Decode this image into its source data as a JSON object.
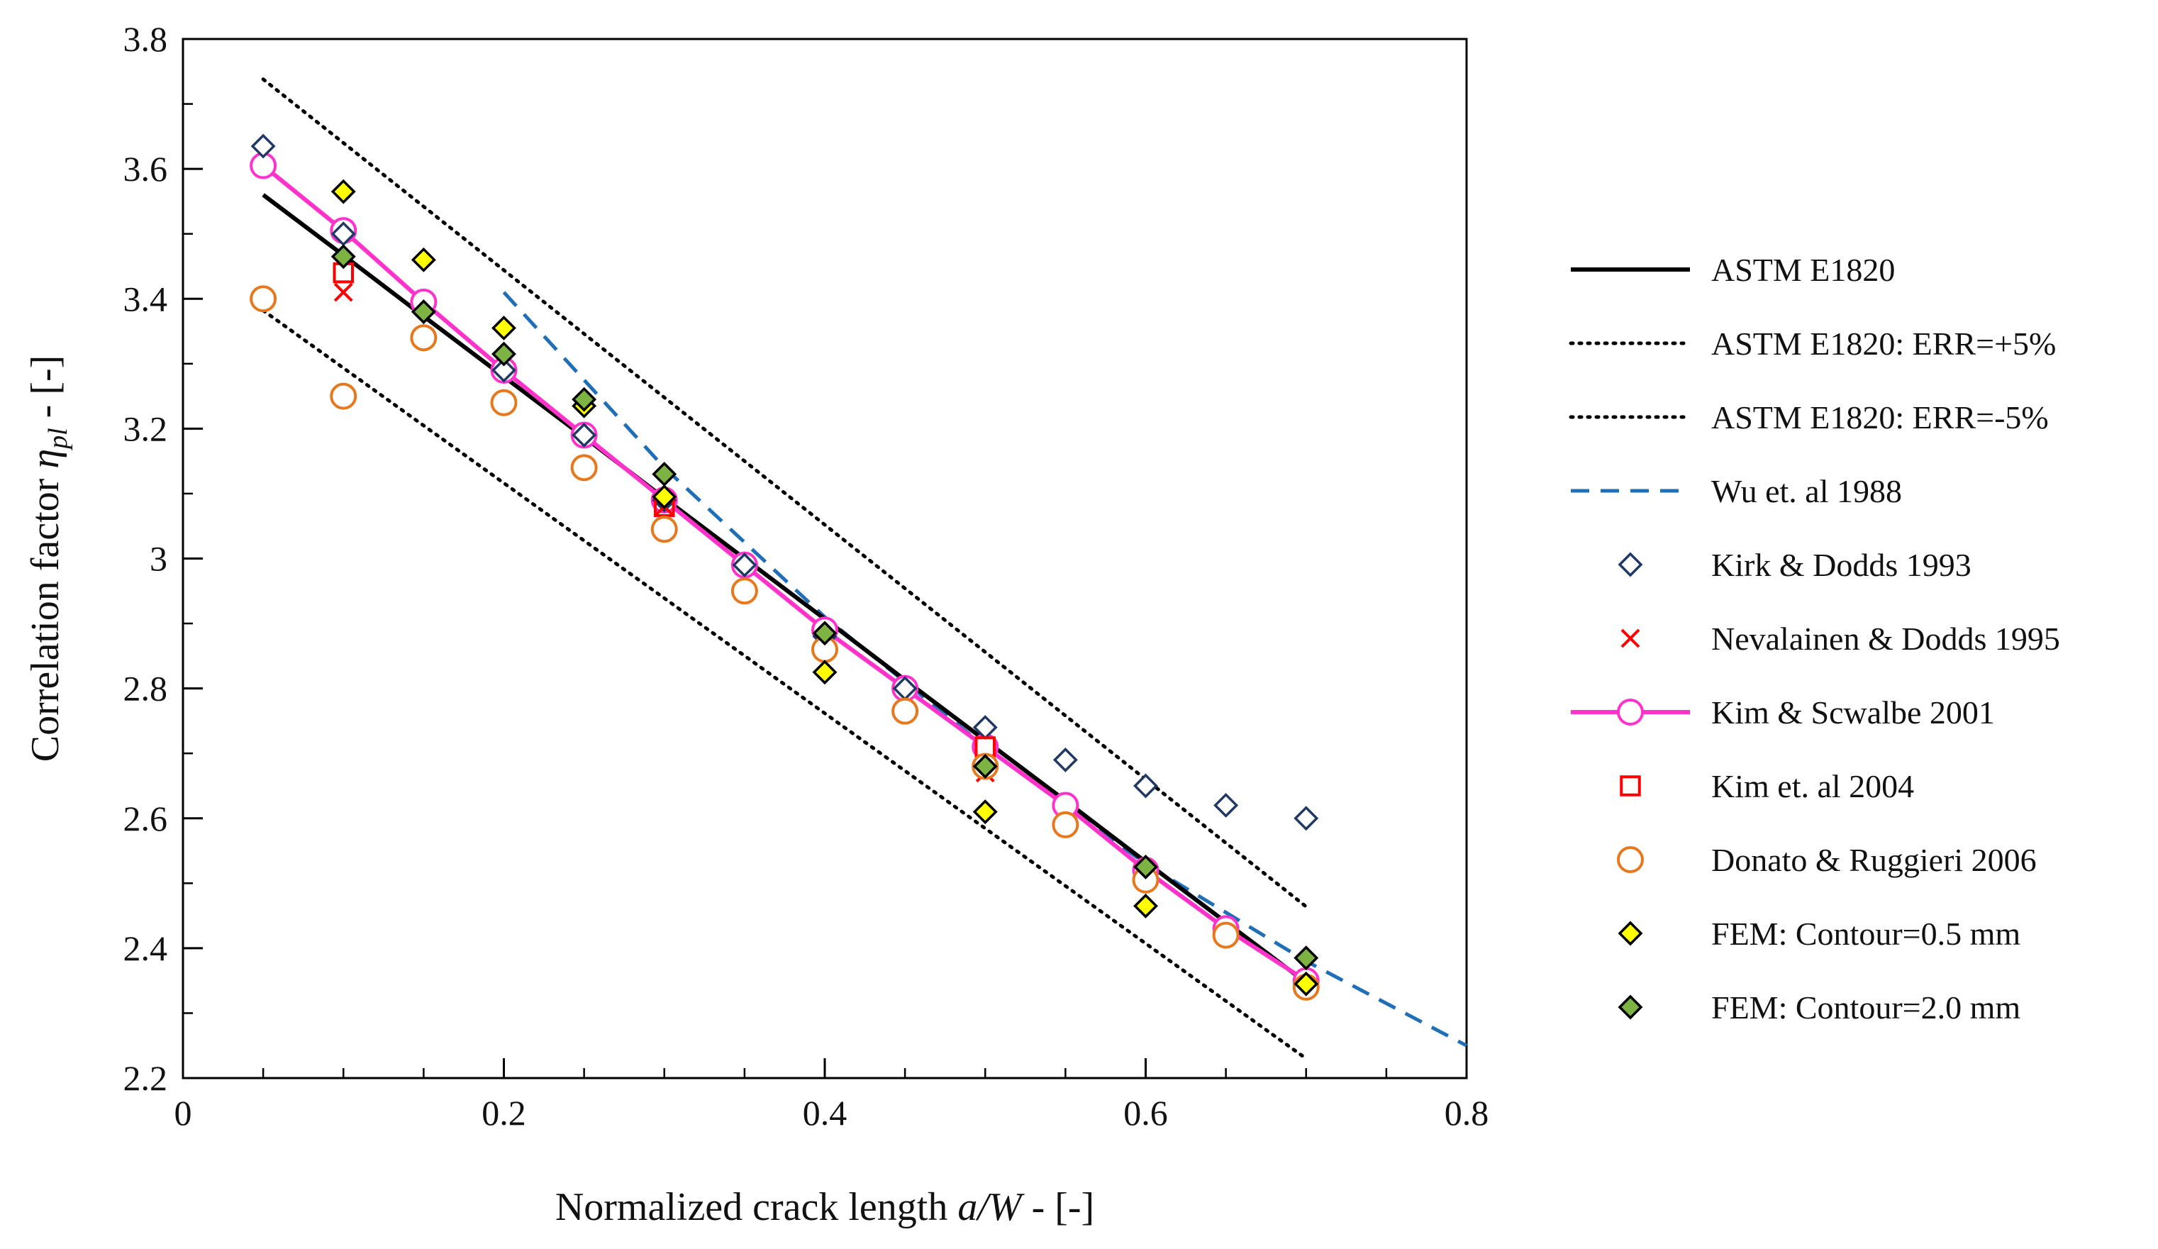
{
  "chart_data": {
    "type": "scatter",
    "title": "",
    "xlabel": {
      "prefix": "Normalized crack length ",
      "italic": "a/W",
      "suffix": " - [-]"
    },
    "ylabel": {
      "prefix": "Correlation factor ",
      "symbol": "η",
      "subscript": "pl",
      "suffix": " - [-]"
    },
    "xlim": [
      0,
      0.8
    ],
    "ylim": [
      2.2,
      3.8
    ],
    "xticks": [
      0,
      0.2,
      0.4,
      0.6,
      0.8
    ],
    "xtick_labels": [
      "0",
      "0.2",
      "0.4",
      "0.6",
      "0.8"
    ],
    "x_minor_step": 0.05,
    "yticks": [
      2.2,
      2.4,
      2.6,
      2.8,
      3.0,
      3.2,
      3.4,
      3.6,
      3.8
    ],
    "ytick_labels": [
      "2.2",
      "2.4",
      "2.6",
      "2.8",
      "3",
      "3.2",
      "3.4",
      "3.6",
      "3.8"
    ],
    "y_minor_step": 0.1,
    "grid": false,
    "legend_position": "right-outside",
    "series": [
      {
        "name": "ASTM E1820",
        "kind": "line",
        "color": "#000000",
        "dash": "solid",
        "x": [
          0.05,
          0.1,
          0.15,
          0.2,
          0.25,
          0.3,
          0.35,
          0.4,
          0.45,
          0.5,
          0.55,
          0.6,
          0.65,
          0.7
        ],
        "y": [
          3.56,
          3.467,
          3.373,
          3.28,
          3.187,
          3.093,
          3.0,
          2.907,
          2.813,
          2.72,
          2.627,
          2.533,
          2.44,
          2.347
        ]
      },
      {
        "name": "ASTM E1820: ERR=+5%",
        "kind": "line",
        "color": "#000000",
        "dash": "dotted",
        "x": [
          0.05,
          0.7
        ],
        "y": [
          3.738,
          2.464
        ]
      },
      {
        "name": "ASTM E1820: ERR=-5%",
        "kind": "line",
        "color": "#000000",
        "dash": "dotted",
        "x": [
          0.05,
          0.7
        ],
        "y": [
          3.382,
          2.23
        ]
      },
      {
        "name": "Wu et. al 1988",
        "kind": "line",
        "color": "#1f6fb8",
        "dash": "dashed",
        "x": [
          0.2,
          0.3,
          0.4,
          0.5,
          0.6,
          0.7,
          0.8
        ],
        "y": [
          3.41,
          3.14,
          2.91,
          2.71,
          2.53,
          2.38,
          2.25
        ]
      },
      {
        "name": "Kirk & Dodds 1993",
        "kind": "marker",
        "marker": "diamond-open",
        "color": "#1f3864",
        "x": [
          0.05,
          0.1,
          0.15,
          0.2,
          0.25,
          0.3,
          0.35,
          0.4,
          0.45,
          0.5,
          0.55,
          0.6,
          0.65,
          0.7
        ],
        "y": [
          3.635,
          3.5,
          3.38,
          3.29,
          3.19,
          3.09,
          2.99,
          2.88,
          2.8,
          2.74,
          2.69,
          2.65,
          2.62,
          2.6
        ]
      },
      {
        "name": "Nevalainen & Dodds 1995",
        "kind": "marker",
        "marker": "x",
        "color": "#ff0000",
        "x": [
          0.1,
          0.3,
          0.5
        ],
        "y": [
          3.41,
          3.08,
          2.67
        ]
      },
      {
        "name": "Kim & Scwalbe 2001",
        "kind": "line+marker",
        "marker": "circle-open",
        "color": "#ff33cc",
        "dash": "solid",
        "x": [
          0.05,
          0.1,
          0.15,
          0.2,
          0.25,
          0.3,
          0.35,
          0.4,
          0.45,
          0.5,
          0.55,
          0.6,
          0.65,
          0.7
        ],
        "y": [
          3.605,
          3.505,
          3.395,
          3.29,
          3.19,
          3.09,
          2.99,
          2.89,
          2.8,
          2.71,
          2.62,
          2.52,
          2.43,
          2.35
        ]
      },
      {
        "name": "Kim et. al 2004",
        "kind": "marker",
        "marker": "square-open",
        "color": "#ff0000",
        "x": [
          0.1,
          0.3,
          0.5
        ],
        "y": [
          3.44,
          3.08,
          2.71
        ]
      },
      {
        "name": "Donato & Ruggieri 2006",
        "kind": "marker",
        "marker": "circle-open",
        "color": "#e6781e",
        "x": [
          0.05,
          0.1,
          0.15,
          0.2,
          0.25,
          0.3,
          0.35,
          0.4,
          0.45,
          0.5,
          0.55,
          0.6,
          0.65,
          0.7
        ],
        "y": [
          3.4,
          3.25,
          3.34,
          3.24,
          3.14,
          3.045,
          2.95,
          2.86,
          2.765,
          2.68,
          2.59,
          2.505,
          2.42,
          2.34
        ]
      },
      {
        "name": "FEM: Contour=0.5 mm",
        "kind": "marker",
        "marker": "diamond-filled",
        "color": "#ffff00",
        "x": [
          0.1,
          0.15,
          0.2,
          0.25,
          0.3,
          0.4,
          0.5,
          0.6,
          0.7
        ],
        "y": [
          3.565,
          3.46,
          3.355,
          3.235,
          3.095,
          2.825,
          2.61,
          2.465,
          2.345
        ]
      },
      {
        "name": "FEM: Contour=2.0 mm",
        "kind": "marker",
        "marker": "diamond-filled",
        "color": "#7cb342",
        "x": [
          0.1,
          0.15,
          0.2,
          0.25,
          0.3,
          0.4,
          0.5,
          0.6,
          0.7
        ],
        "y": [
          3.465,
          3.38,
          3.315,
          3.245,
          3.13,
          2.885,
          2.68,
          2.525,
          2.385
        ]
      }
    ]
  }
}
